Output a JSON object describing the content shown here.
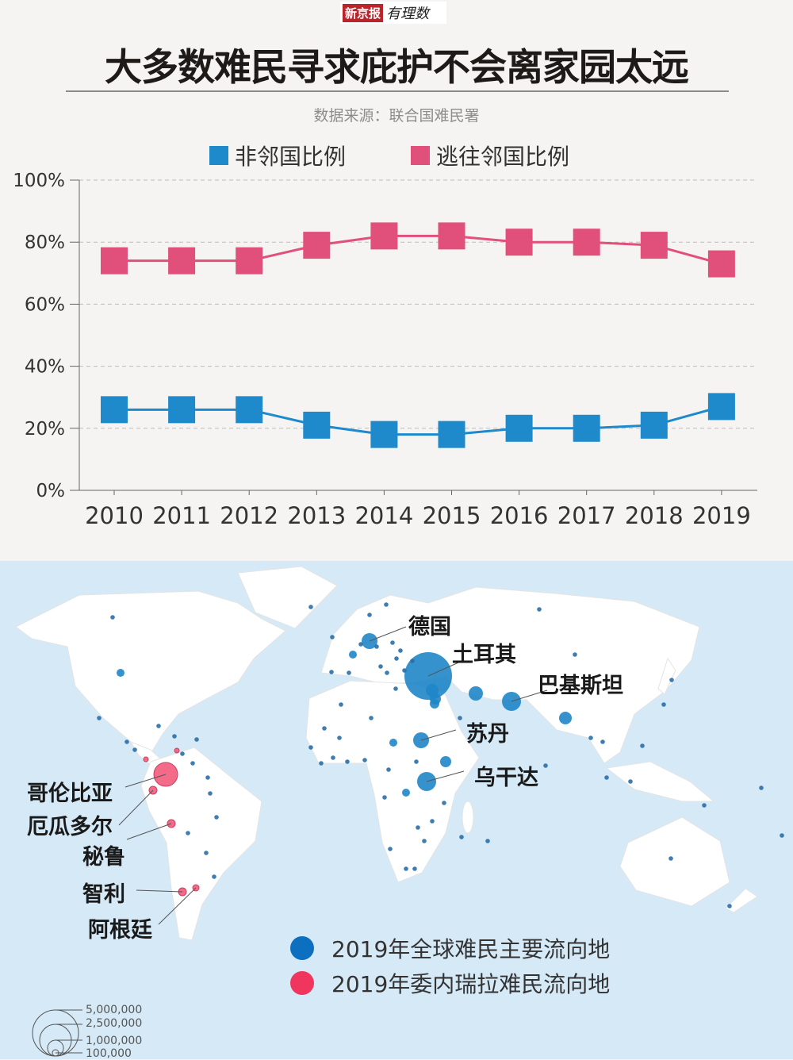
{
  "header": {
    "logo_text": "新京报",
    "logo_script": "有理数",
    "title": "大多数难民寻求庇护不会离家园太远",
    "source": "数据来源：联合国难民署"
  },
  "legend": [
    {
      "label": "非邻国比例",
      "color": "#1f8acb"
    },
    {
      "label": "逃往邻国比例",
      "color": "#e0507a"
    }
  ],
  "chart_data": {
    "type": "line",
    "categories": [
      "2010",
      "2011",
      "2012",
      "2013",
      "2014",
      "2015",
      "2016",
      "2017",
      "2018",
      "2019"
    ],
    "series": [
      {
        "name": "非邻国比例",
        "color": "#1f8acb",
        "values": [
          26,
          26,
          26,
          21,
          18,
          18,
          20,
          20,
          21,
          27
        ]
      },
      {
        "name": "逃往邻国比例",
        "color": "#e0507a",
        "values": [
          74,
          74,
          74,
          79,
          82,
          82,
          80,
          80,
          79,
          73
        ]
      }
    ],
    "ylim": [
      0,
      100
    ],
    "yticks": [
      "0%",
      "20%",
      "40%",
      "60%",
      "80%",
      "100%"
    ],
    "grid": true,
    "legend_position": "top"
  },
  "map": {
    "labels": {
      "germany": "德国",
      "turkey": "土耳其",
      "pakistan": "巴基斯坦",
      "sudan": "苏丹",
      "uganda": "乌干达",
      "colombia": "哥伦比亚",
      "ecuador": "厄瓜多尔",
      "peru": "秘鲁",
      "chile": "智利",
      "argentina": "阿根廷"
    },
    "legend": [
      {
        "label": "2019年全球难民主要流向地",
        "color": "#0d6fbf"
      },
      {
        "label": "2019年委内瑞拉难民流向地",
        "color": "#f0365f"
      }
    ],
    "size_scale": [
      "5,000,000",
      "2,500,000",
      "1,000,000",
      "100,000"
    ],
    "colors": {
      "ocean": "#d5e9f6",
      "land": "#ffffff",
      "global_bubble": "#1f86c8",
      "venezuela_bubble": "#f25b7c"
    }
  }
}
